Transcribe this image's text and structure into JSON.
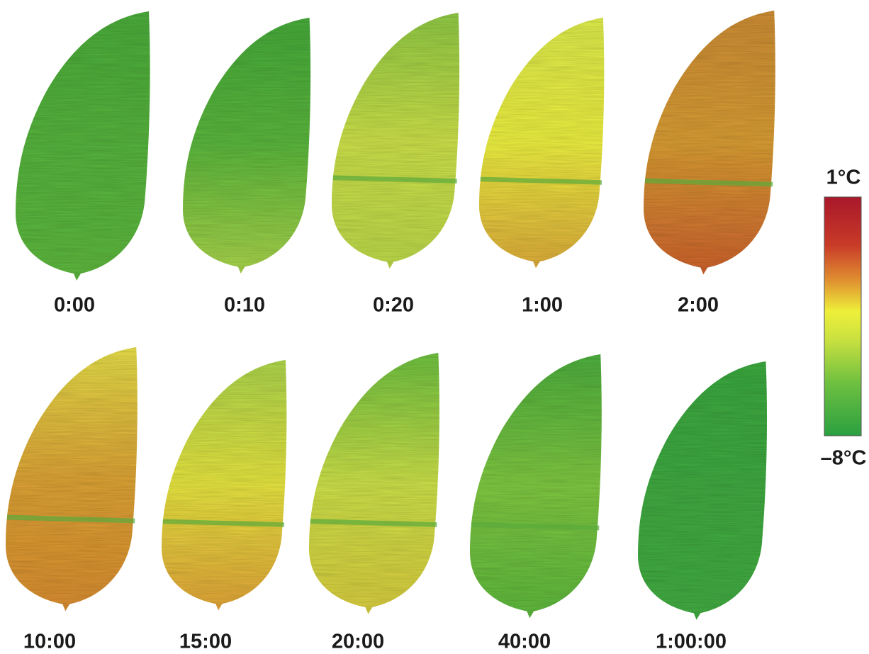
{
  "panels": [
    {
      "label": "0:00"
    },
    {
      "label": "0:10"
    },
    {
      "label": "0:20"
    },
    {
      "label": "1:00"
    },
    {
      "label": "2:00"
    },
    {
      "label": "10:00"
    },
    {
      "label": "15:00"
    },
    {
      "label": "20:00"
    },
    {
      "label": "40:00"
    },
    {
      "label": "1:00:00"
    }
  ],
  "colorbar": {
    "max_label": "1°C",
    "min_label": "–8°C"
  }
}
